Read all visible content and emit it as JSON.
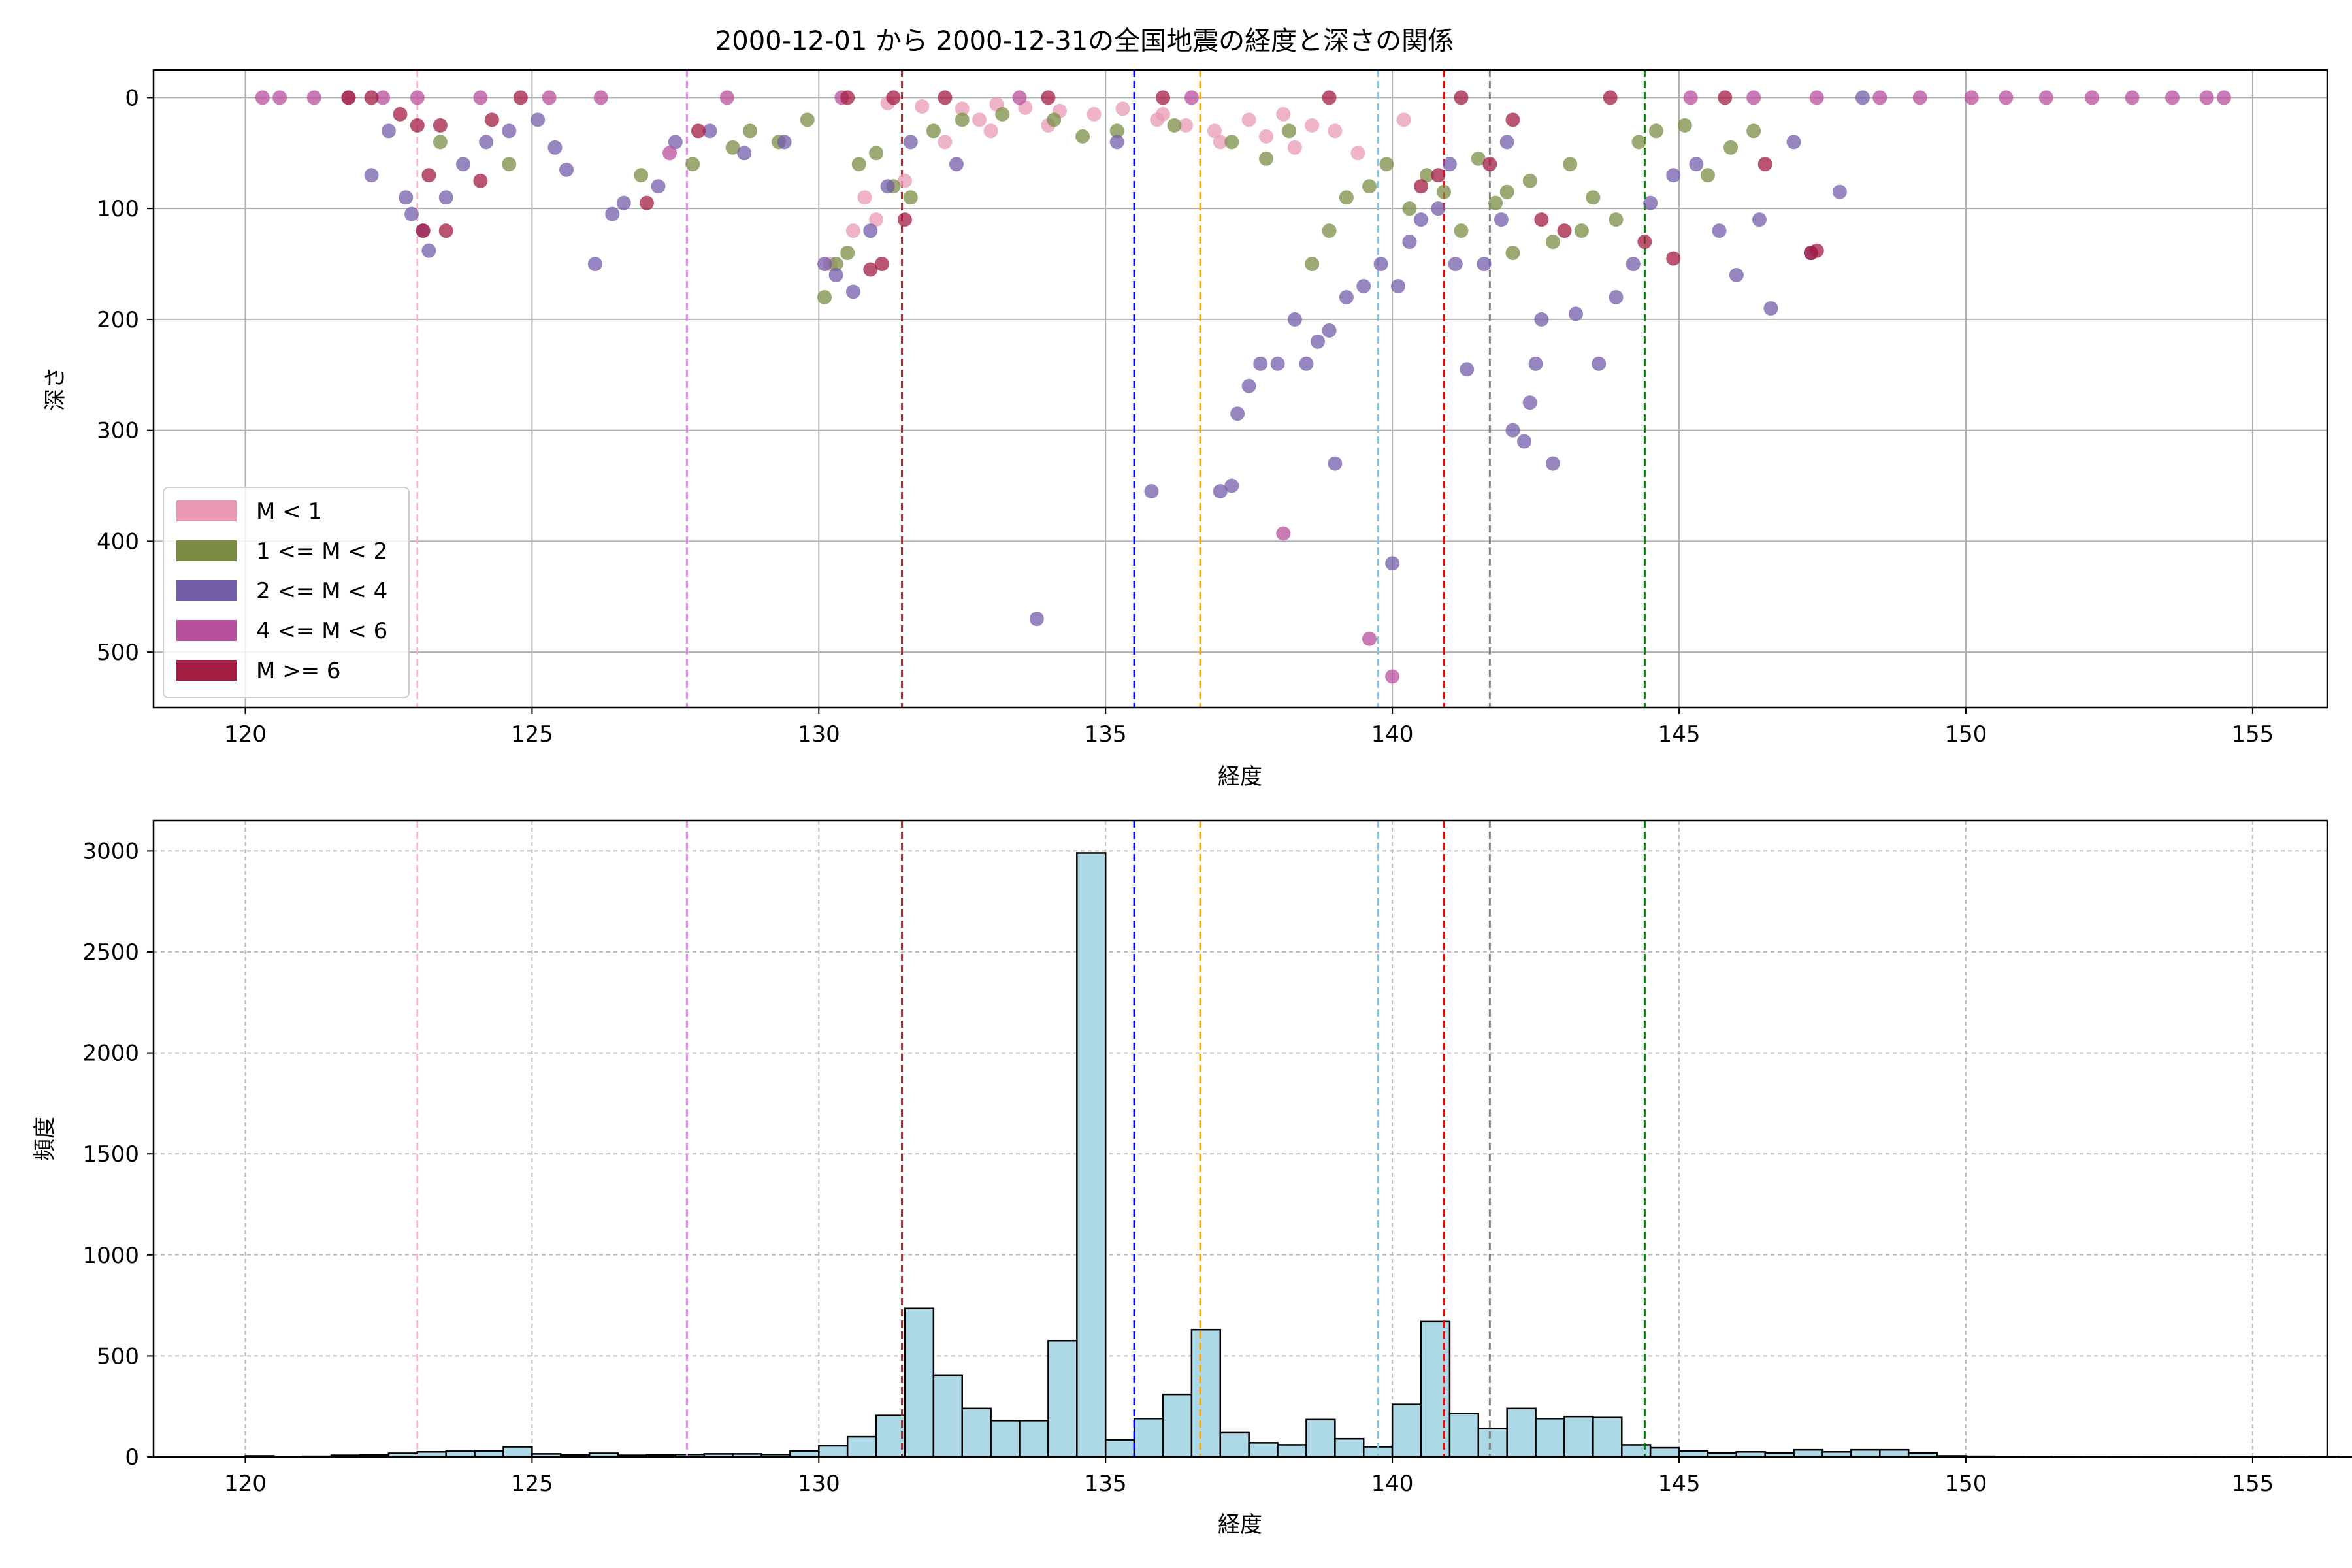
{
  "chart_data": [
    {
      "type": "scatter",
      "title": "2000-12-01 から 2000-12-31の全国地震の経度と深さの関係",
      "xlabel": "経度",
      "ylabel": "深さ",
      "xlim": [
        118.4,
        156.3
      ],
      "ylim": [
        550,
        -25
      ],
      "y_inverted": true,
      "xticks": [
        120,
        125,
        130,
        135,
        140,
        145,
        150,
        155
      ],
      "yticks": [
        0,
        100,
        200,
        300,
        400,
        500
      ],
      "grid": true,
      "legend_position": "lower-left",
      "legend": [
        {
          "label": "M < 1",
          "color": "#e89ab4"
        },
        {
          "label": "1 <= M < 2",
          "color": "#7a8c44"
        },
        {
          "label": "2 <= M < 4",
          "color": "#735ca8"
        },
        {
          "label": "4 <= M < 6",
          "color": "#b84f9e"
        },
        {
          "label": "M >= 6",
          "color": "#a31c42"
        }
      ],
      "vlines": [
        {
          "x": 123.0,
          "color": "#ffb6c8"
        },
        {
          "x": 127.7,
          "color": "#ee82ee"
        },
        {
          "x": 131.45,
          "color": "#a52a2a"
        },
        {
          "x": 135.5,
          "color": "#0000ff"
        },
        {
          "x": 136.65,
          "color": "#ffa500"
        },
        {
          "x": 139.75,
          "color": "#7ec8e3"
        },
        {
          "x": 140.9,
          "color": "#ff0000"
        },
        {
          "x": 141.7,
          "color": "#808080"
        },
        {
          "x": 144.4,
          "color": "#008000"
        }
      ],
      "series": [
        {
          "name": "M < 1",
          "color": "#e89ab4",
          "points": [
            [
              131.2,
              5
            ],
            [
              131.8,
              8
            ],
            [
              132.5,
              10
            ],
            [
              133.1,
              6
            ],
            [
              133.6,
              9
            ],
            [
              134.2,
              12
            ],
            [
              134.8,
              15
            ],
            [
              135.3,
              10
            ],
            [
              135.9,
              20
            ],
            [
              136.4,
              25
            ],
            [
              136.9,
              30
            ],
            [
              137.5,
              20
            ],
            [
              138.1,
              15
            ],
            [
              138.6,
              25
            ],
            [
              130.8,
              90
            ],
            [
              131.0,
              110
            ],
            [
              130.6,
              120
            ],
            [
              131.5,
              75
            ],
            [
              132.2,
              40
            ],
            [
              133.0,
              30
            ],
            [
              134.0,
              25
            ],
            [
              137.0,
              40
            ],
            [
              137.8,
              35
            ],
            [
              138.3,
              45
            ],
            [
              139.0,
              30
            ],
            [
              139.4,
              50
            ],
            [
              140.2,
              20
            ],
            [
              130.2,
              150
            ],
            [
              132.8,
              20
            ],
            [
              136.0,
              15
            ]
          ]
        },
        {
          "name": "1 <= M < 2",
          "color": "#7a8c44",
          "points": [
            [
              128.8,
              30
            ],
            [
              129.3,
              40
            ],
            [
              129.8,
              20
            ],
            [
              130.1,
              180
            ],
            [
              130.3,
              150
            ],
            [
              130.5,
              140
            ],
            [
              130.7,
              60
            ],
            [
              131.0,
              50
            ],
            [
              131.3,
              80
            ],
            [
              131.6,
              90
            ],
            [
              132.0,
              30
            ],
            [
              132.5,
              20
            ],
            [
              133.2,
              15
            ],
            [
              134.1,
              20
            ],
            [
              134.6,
              35
            ],
            [
              135.2,
              30
            ],
            [
              136.2,
              25
            ],
            [
              137.2,
              40
            ],
            [
              137.8,
              55
            ],
            [
              138.2,
              30
            ],
            [
              138.6,
              150
            ],
            [
              138.9,
              120
            ],
            [
              139.2,
              90
            ],
            [
              139.6,
              80
            ],
            [
              139.9,
              60
            ],
            [
              140.3,
              100
            ],
            [
              140.6,
              70
            ],
            [
              140.9,
              85
            ],
            [
              141.2,
              120
            ],
            [
              141.5,
              55
            ],
            [
              141.8,
              95
            ],
            [
              142.1,
              140
            ],
            [
              142.4,
              75
            ],
            [
              142.8,
              130
            ],
            [
              143.1,
              60
            ],
            [
              143.5,
              90
            ],
            [
              143.9,
              110
            ],
            [
              144.3,
              40
            ],
            [
              144.6,
              30
            ],
            [
              145.1,
              25
            ],
            [
              145.5,
              70
            ],
            [
              145.9,
              45
            ],
            [
              146.3,
              30
            ],
            [
              127.8,
              60
            ],
            [
              126.9,
              70
            ],
            [
              124.6,
              60
            ],
            [
              123.4,
              40
            ],
            [
              128.5,
              45
            ],
            [
              142.0,
              85
            ],
            [
              143.3,
              120
            ]
          ]
        },
        {
          "name": "2 <= M < 4",
          "color": "#735ca8",
          "points": [
            [
              122.2,
              70
            ],
            [
              122.5,
              30
            ],
            [
              122.8,
              90
            ],
            [
              122.9,
              105
            ],
            [
              123.1,
              120
            ],
            [
              123.2,
              138
            ],
            [
              123.5,
              90
            ],
            [
              123.8,
              60
            ],
            [
              124.2,
              40
            ],
            [
              124.6,
              30
            ],
            [
              125.1,
              20
            ],
            [
              125.4,
              45
            ],
            [
              125.6,
              65
            ],
            [
              126.1,
              150
            ],
            [
              126.4,
              105
            ],
            [
              126.6,
              95
            ],
            [
              127.2,
              80
            ],
            [
              127.5,
              40
            ],
            [
              128.1,
              30
            ],
            [
              128.7,
              50
            ],
            [
              129.4,
              40
            ],
            [
              130.1,
              150
            ],
            [
              130.3,
              160
            ],
            [
              130.6,
              175
            ],
            [
              130.9,
              120
            ],
            [
              131.2,
              80
            ],
            [
              131.6,
              40
            ],
            [
              132.4,
              60
            ],
            [
              133.8,
              470
            ],
            [
              135.2,
              40
            ],
            [
              135.8,
              355
            ],
            [
              137.0,
              355
            ],
            [
              137.2,
              350
            ],
            [
              137.3,
              285
            ],
            [
              137.5,
              260
            ],
            [
              137.7,
              240
            ],
            [
              138.0,
              240
            ],
            [
              138.3,
              200
            ],
            [
              138.5,
              240
            ],
            [
              138.7,
              220
            ],
            [
              138.9,
              210
            ],
            [
              139.0,
              330
            ],
            [
              139.2,
              180
            ],
            [
              139.5,
              170
            ],
            [
              139.8,
              150
            ],
            [
              140.0,
              420
            ],
            [
              140.1,
              170
            ],
            [
              140.3,
              130
            ],
            [
              140.5,
              110
            ],
            [
              140.8,
              100
            ],
            [
              141.1,
              150
            ],
            [
              141.3,
              245
            ],
            [
              141.6,
              150
            ],
            [
              141.9,
              110
            ],
            [
              142.1,
              300
            ],
            [
              142.3,
              310
            ],
            [
              142.4,
              275
            ],
            [
              142.5,
              240
            ],
            [
              142.6,
              200
            ],
            [
              142.8,
              330
            ],
            [
              143.2,
              195
            ],
            [
              143.6,
              240
            ],
            [
              143.9,
              180
            ],
            [
              144.2,
              150
            ],
            [
              144.5,
              95
            ],
            [
              144.9,
              70
            ],
            [
              145.3,
              60
            ],
            [
              145.7,
              120
            ],
            [
              146.0,
              160
            ],
            [
              146.4,
              110
            ],
            [
              146.6,
              190
            ],
            [
              147.0,
              40
            ],
            [
              147.3,
              140
            ],
            [
              147.8,
              85
            ],
            [
              148.2,
              0
            ],
            [
              141.0,
              60
            ],
            [
              142.0,
              40
            ]
          ]
        },
        {
          "name": "4 <= M < 6",
          "color": "#b84f9e",
          "points": [
            [
              120.3,
              0
            ],
            [
              120.6,
              0
            ],
            [
              121.2,
              0
            ],
            [
              121.8,
              0
            ],
            [
              122.4,
              0
            ],
            [
              123.0,
              0
            ],
            [
              124.1,
              0
            ],
            [
              125.3,
              0
            ],
            [
              126.2,
              0
            ],
            [
              127.4,
              50
            ],
            [
              128.4,
              0
            ],
            [
              130.4,
              0
            ],
            [
              133.5,
              0
            ],
            [
              136.5,
              0
            ],
            [
              138.1,
              393
            ],
            [
              139.6,
              488
            ],
            [
              140.0,
              522
            ],
            [
              145.2,
              0
            ],
            [
              146.3,
              0
            ],
            [
              147.4,
              0
            ],
            [
              148.5,
              0
            ],
            [
              149.2,
              0
            ],
            [
              150.1,
              0
            ],
            [
              150.7,
              0
            ],
            [
              151.4,
              0
            ],
            [
              152.2,
              0
            ],
            [
              152.9,
              0
            ],
            [
              153.6,
              0
            ],
            [
              154.2,
              0
            ],
            [
              154.5,
              0
            ]
          ]
        },
        {
          "name": "M >= 6",
          "color": "#a31c42",
          "points": [
            [
              121.8,
              0
            ],
            [
              122.2,
              0
            ],
            [
              122.7,
              15
            ],
            [
              123.0,
              25
            ],
            [
              123.1,
              120
            ],
            [
              123.2,
              70
            ],
            [
              123.4,
              25
            ],
            [
              123.5,
              120
            ],
            [
              124.1,
              75
            ],
            [
              124.3,
              20
            ],
            [
              124.8,
              0
            ],
            [
              127.0,
              95
            ],
            [
              127.9,
              30
            ],
            [
              130.5,
              0
            ],
            [
              130.9,
              155
            ],
            [
              131.1,
              150
            ],
            [
              131.3,
              0
            ],
            [
              131.5,
              110
            ],
            [
              132.2,
              0
            ],
            [
              134.0,
              0
            ],
            [
              136.0,
              0
            ],
            [
              138.9,
              0
            ],
            [
              140.5,
              80
            ],
            [
              140.8,
              70
            ],
            [
              141.2,
              0
            ],
            [
              141.7,
              60
            ],
            [
              142.1,
              20
            ],
            [
              142.6,
              110
            ],
            [
              143.0,
              120
            ],
            [
              143.8,
              0
            ],
            [
              144.4,
              130
            ],
            [
              144.9,
              145
            ],
            [
              145.8,
              0
            ],
            [
              146.5,
              60
            ],
            [
              147.3,
              140
            ],
            [
              147.4,
              138
            ]
          ]
        }
      ]
    },
    {
      "type": "bar",
      "title": "",
      "xlabel": "経度",
      "ylabel": "頻度",
      "xlim": [
        118.4,
        156.3
      ],
      "ylim": [
        0,
        3150
      ],
      "xticks": [
        120,
        125,
        130,
        135,
        140,
        145,
        150,
        155
      ],
      "yticks": [
        0,
        500,
        1000,
        1500,
        2000,
        2500,
        3000
      ],
      "grid": true,
      "bar_color": "#add8e6",
      "bar_edge": "#000000",
      "bin_start": 120.0,
      "bin_width": 0.5,
      "values": [
        5,
        2,
        3,
        8,
        10,
        18,
        25,
        28,
        30,
        50,
        15,
        10,
        18,
        8,
        10,
        12,
        15,
        15,
        12,
        30,
        55,
        100,
        205,
        735,
        405,
        240,
        180,
        180,
        575,
        2990,
        85,
        190,
        310,
        630,
        120,
        70,
        60,
        185,
        90,
        50,
        260,
        670,
        215,
        140,
        240,
        190,
        200,
        195,
        60,
        45,
        30,
        20,
        25,
        20,
        35,
        25,
        35,
        35,
        20,
        5,
        3,
        2,
        2,
        1,
        1,
        1,
        1,
        1,
        1,
        1,
        2,
        1,
        2,
        1
      ]
    }
  ]
}
